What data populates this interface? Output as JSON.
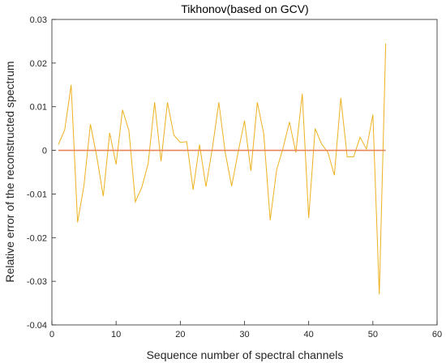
{
  "chart_data": {
    "type": "line",
    "title": "Tikhonov(based on GCV)",
    "xlabel": "Sequence number of spectral channels",
    "ylabel": "Relative error of the reconstructed spectrum",
    "xlim": [
      0,
      60
    ],
    "ylim": [
      -0.04,
      0.03
    ],
    "xticks": [
      0,
      10,
      20,
      30,
      40,
      50,
      60
    ],
    "yticks": [
      -0.04,
      -0.03,
      -0.02,
      -0.01,
      0,
      0.01,
      0.02,
      0.03
    ],
    "xtick_labels": [
      "0",
      "10",
      "20",
      "30",
      "40",
      "50",
      "60"
    ],
    "ytick_labels": [
      "-0.04",
      "-0.03",
      "-0.02",
      "-0.01",
      "0",
      "0.01",
      "0.02",
      "0.03"
    ],
    "grid": false,
    "series": [
      {
        "color": "#EDB120",
        "x": [
          1,
          2,
          3,
          4,
          5,
          6,
          7,
          8,
          9,
          10,
          11,
          12,
          13,
          14,
          15,
          16,
          17,
          18,
          19,
          20,
          21,
          22,
          23,
          24,
          25,
          26,
          27,
          28,
          29,
          30,
          31,
          32,
          33,
          34,
          35,
          36,
          37,
          38,
          39,
          40,
          41,
          42,
          43,
          44,
          45,
          46,
          47,
          48,
          49,
          50,
          51,
          52
        ],
        "y": [
          0.0013,
          0.0047,
          0.015,
          -0.0165,
          -0.008,
          0.006,
          -0.0015,
          -0.0105,
          0.004,
          -0.0032,
          0.0093,
          0.0045,
          -0.0118,
          -0.0085,
          -0.003,
          0.011,
          -0.0025,
          0.011,
          0.0035,
          0.0018,
          0.002,
          -0.009,
          0.0013,
          -0.0083,
          0.0005,
          0.011,
          -0.0005,
          -0.0082,
          -0.0005,
          0.0068,
          -0.0047,
          0.011,
          0.0038,
          -0.016,
          -0.0045,
          0.0005,
          0.0065,
          -0.0005,
          0.013,
          -0.0155,
          0.005,
          0.0015,
          -0.0005,
          -0.0057,
          0.012,
          -0.0015,
          -0.0015,
          0.003,
          0.0003,
          0.0082,
          -0.033,
          0.0245
        ]
      },
      {
        "color": "#E8855C",
        "x": [
          1,
          52
        ],
        "y": [
          0,
          0
        ]
      }
    ]
  }
}
